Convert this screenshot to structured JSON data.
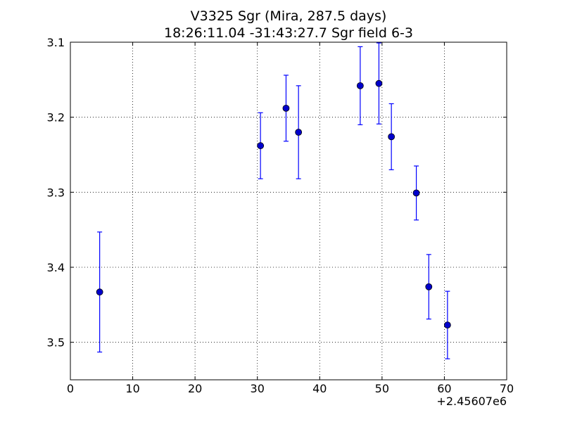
{
  "chart_data": {
    "type": "scatter",
    "title": "V3325 Sgr (Mira, 287.5 days)",
    "subtitle": "18:26:11.04 -31:43:27.7 Sgr field 6-3",
    "xlabel": "",
    "ylabel": "",
    "x_offset_label": "+2.45607e6",
    "xlim": [
      0,
      70
    ],
    "ylim": [
      3.55,
      3.1
    ],
    "y_inverted": true,
    "x_ticks": [
      0,
      10,
      20,
      30,
      40,
      50,
      60,
      70
    ],
    "x_tick_labels": [
      "0",
      "10",
      "20",
      "30",
      "40",
      "50",
      "60",
      "70"
    ],
    "y_ticks": [
      3.1,
      3.2,
      3.3,
      3.4,
      3.5
    ],
    "y_tick_labels": [
      "3.1",
      "3.2",
      "3.3",
      "3.4",
      "3.5"
    ],
    "grid": true,
    "marker_color": "#0000cc",
    "errorbar_color": "#0000ff",
    "series": [
      {
        "points": [
          {
            "x": 4.7,
            "y": 3.433,
            "yerr": 0.08
          },
          {
            "x": 30.5,
            "y": 3.238,
            "yerr": 0.044
          },
          {
            "x": 34.6,
            "y": 3.188,
            "yerr": 0.044
          },
          {
            "x": 36.6,
            "y": 3.22,
            "yerr": 0.062
          },
          {
            "x": 46.5,
            "y": 3.158,
            "yerr": 0.052
          },
          {
            "x": 49.5,
            "y": 3.155,
            "yerr": 0.054
          },
          {
            "x": 51.5,
            "y": 3.226,
            "yerr": 0.044
          },
          {
            "x": 55.5,
            "y": 3.301,
            "yerr": 0.036
          },
          {
            "x": 57.5,
            "y": 3.426,
            "yerr": 0.043
          },
          {
            "x": 60.5,
            "y": 3.477,
            "yerr": 0.045
          }
        ]
      }
    ]
  }
}
